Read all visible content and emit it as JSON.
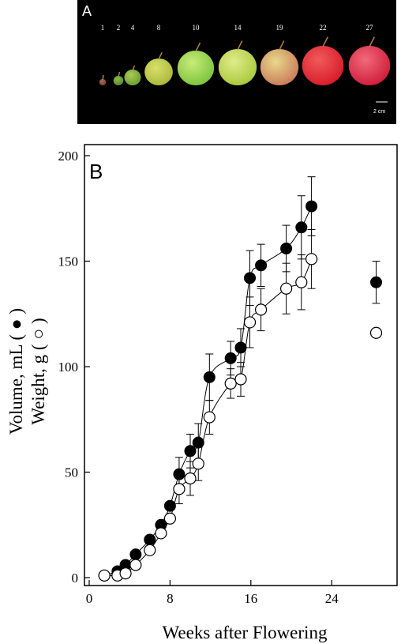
{
  "panel_a": {
    "label": "A",
    "week_labels": [
      "1",
      "2",
      "4",
      "8",
      "10",
      "14",
      "19",
      "22",
      "27"
    ],
    "scale_bar_label": "2 cm",
    "fruits": [
      {
        "week": "1",
        "color": "#7a4a3a",
        "highlight": "#a86a55"
      },
      {
        "week": "2",
        "color": "#5a8a2a",
        "highlight": "#8ab84a"
      },
      {
        "week": "4",
        "color": "#6a9a2a",
        "highlight": "#a8cc5a"
      },
      {
        "week": "8",
        "color": "#a8b83a",
        "highlight": "#d8e06a"
      },
      {
        "week": "10",
        "color": "#7ac23a",
        "highlight": "#c8ec7a"
      },
      {
        "week": "14",
        "color": "#a8c83a",
        "highlight": "#e0ec8a"
      },
      {
        "week": "19",
        "color": "#c87a5a",
        "highlight": "#e8d88a"
      },
      {
        "week": "22",
        "color": "#d81a2a",
        "highlight": "#f05a5a"
      },
      {
        "week": "27",
        "color": "#d01a3a",
        "highlight": "#f06a7a"
      }
    ]
  },
  "chart_data": {
    "type": "scatter",
    "panel_label": "B",
    "title": "",
    "xlabel": "Weeks after Flowering",
    "ylabel_line1": "Volume, mL (",
    "ylabel_line1_end": ")",
    "ylabel_line2": "Weight, g (",
    "ylabel_line2_end": ")",
    "xlim": [
      0,
      30
    ],
    "ylim": [
      0,
      200
    ],
    "x_ticks": [
      0,
      8,
      16,
      24
    ],
    "y_ticks": [
      0,
      50,
      100,
      150,
      200
    ],
    "series": [
      {
        "marker": "filled-circle",
        "x": [
          1.5,
          2.8,
          3.6,
          4.6,
          6.0,
          7.1,
          8.0,
          8.9,
          10.0,
          10.8,
          11.9,
          14.0,
          15.0,
          15.9,
          17.0,
          19.5,
          21.0,
          22.0,
          28.4
        ],
        "y": [
          1,
          3,
          6,
          11,
          18,
          25,
          34,
          49,
          60,
          64,
          95,
          104,
          109,
          142,
          148,
          156,
          166,
          176,
          140
        ],
        "err": [
          0,
          0,
          0,
          0,
          0,
          0,
          0,
          8,
          8,
          9,
          11,
          8,
          9,
          13,
          10,
          11,
          15,
          14,
          10
        ],
        "fitted": [
          true,
          true,
          true,
          true,
          true,
          true,
          true,
          true,
          true,
          true,
          true,
          true,
          true,
          true,
          true,
          true,
          true,
          true,
          false
        ],
        "color": "#000000"
      },
      {
        "marker": "open-circle",
        "x": [
          1.5,
          2.8,
          3.6,
          4.6,
          6.0,
          7.1,
          8.0,
          8.9,
          10.0,
          10.8,
          11.9,
          14.0,
          15.0,
          15.9,
          17.0,
          19.5,
          21.0,
          22.0,
          28.4
        ],
        "y": [
          1,
          1,
          2,
          6,
          13,
          21,
          28,
          42,
          47,
          54,
          76,
          92,
          94,
          121,
          127,
          137,
          140,
          151,
          116
        ],
        "err": [
          0,
          0,
          0,
          0,
          0,
          0,
          0,
          7,
          8,
          8,
          8,
          7,
          8,
          12,
          10,
          12,
          13,
          14,
          0
        ],
        "fitted": [
          true,
          true,
          true,
          true,
          true,
          true,
          true,
          true,
          true,
          true,
          true,
          true,
          true,
          true,
          true,
          true,
          true,
          true,
          false
        ],
        "color": "#000000"
      }
    ]
  }
}
